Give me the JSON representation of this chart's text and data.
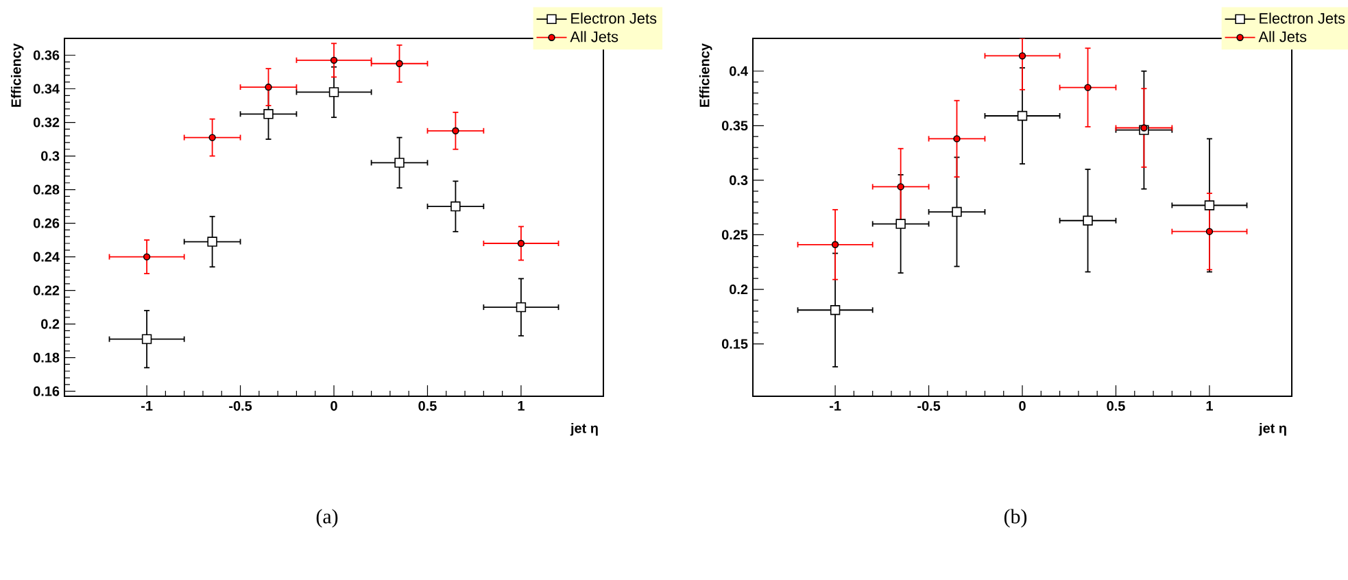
{
  "chart_data": [
    {
      "type": "scatter",
      "xlabel": "jet η",
      "ylabel": "Efficiency",
      "annotations": [
        "(a)"
      ],
      "legend": "top right",
      "xlim": [
        -1.44,
        1.44
      ],
      "ylim": [
        0.157,
        0.37
      ],
      "xticks": [
        -1,
        -0.5,
        0,
        0.5,
        1
      ],
      "yticks": [
        0.16,
        0.18,
        0.2,
        0.22,
        0.24,
        0.26,
        0.28,
        0.3,
        0.32,
        0.34,
        0.36
      ],
      "x": [
        -1,
        -0.65,
        -0.35,
        0,
        0.35,
        0.65,
        1
      ],
      "series": [
        {
          "name": "Electron Jets",
          "color": "#000000",
          "marker": "square",
          "values": [
            0.191,
            0.249,
            0.325,
            0.338,
            0.296,
            0.27,
            0.21
          ],
          "errors": [
            0.017,
            0.015,
            0.015,
            0.015,
            0.015,
            0.015,
            0.017
          ],
          "xerrors": [
            0.2,
            0.15,
            0.15,
            0.2,
            0.15,
            0.15,
            0.2
          ]
        },
        {
          "name": "All Jets",
          "color": "#ff0000",
          "marker": "circle",
          "values": [
            0.24,
            0.311,
            0.341,
            0.357,
            0.355,
            0.315,
            0.248
          ],
          "errors": [
            0.01,
            0.011,
            0.011,
            0.01,
            0.011,
            0.011,
            0.01
          ],
          "xerrors": [
            0.2,
            0.15,
            0.15,
            0.2,
            0.15,
            0.15,
            0.2
          ]
        }
      ]
    },
    {
      "type": "scatter",
      "xlabel": "jet η",
      "ylabel": "Efficiency",
      "annotations": [
        "(b)"
      ],
      "legend": "top right",
      "xlim": [
        -1.44,
        1.44
      ],
      "ylim": [
        0.102,
        0.43
      ],
      "xticks": [
        -1,
        -0.5,
        0,
        0.5,
        1
      ],
      "yticks": [
        0.15,
        0.2,
        0.25,
        0.3,
        0.35,
        0.4
      ],
      "x": [
        -1,
        -0.65,
        -0.35,
        0,
        0.35,
        0.65,
        1
      ],
      "series": [
        {
          "name": "Electron Jets",
          "color": "#000000",
          "marker": "square",
          "values": [
            0.181,
            0.26,
            0.271,
            0.359,
            0.263,
            0.346,
            0.277
          ],
          "errors": [
            0.052,
            0.045,
            0.05,
            0.044,
            0.047,
            0.054,
            0.061
          ],
          "xerrors": [
            0.2,
            0.15,
            0.15,
            0.2,
            0.15,
            0.15,
            0.2
          ]
        },
        {
          "name": "All Jets",
          "color": "#ff0000",
          "marker": "circle",
          "values": [
            0.241,
            0.294,
            0.338,
            0.414,
            0.385,
            0.348,
            0.253
          ],
          "errors": [
            0.032,
            0.035,
            0.035,
            [
              0.383,
              0.43
            ],
            0.036,
            0.036,
            0.035
          ],
          "xerrors": [
            0.2,
            0.15,
            0.15,
            0.2,
            0.15,
            0.15,
            0.2
          ]
        }
      ]
    }
  ]
}
